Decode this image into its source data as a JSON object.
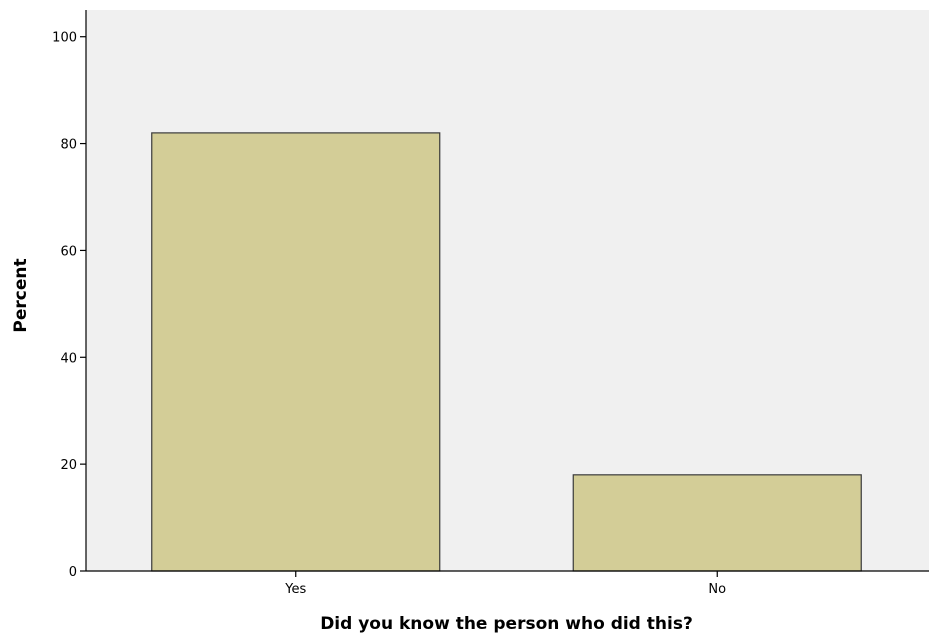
{
  "chart_data": {
    "type": "bar",
    "categories": [
      "Yes",
      "No"
    ],
    "values": [
      82,
      18
    ],
    "title": "",
    "xlabel": "Did you know the person who did this?",
    "ylabel": "Percent",
    "ylim": [
      0,
      105
    ],
    "yticks": [
      0,
      20,
      40,
      60,
      80,
      100
    ],
    "grid": false,
    "legend": "none",
    "colors": {
      "bar_fill": "#d3cd97",
      "bar_stroke": "#3a3a3a",
      "plot_background": "#f0f0f0",
      "axis": "#000000"
    }
  }
}
